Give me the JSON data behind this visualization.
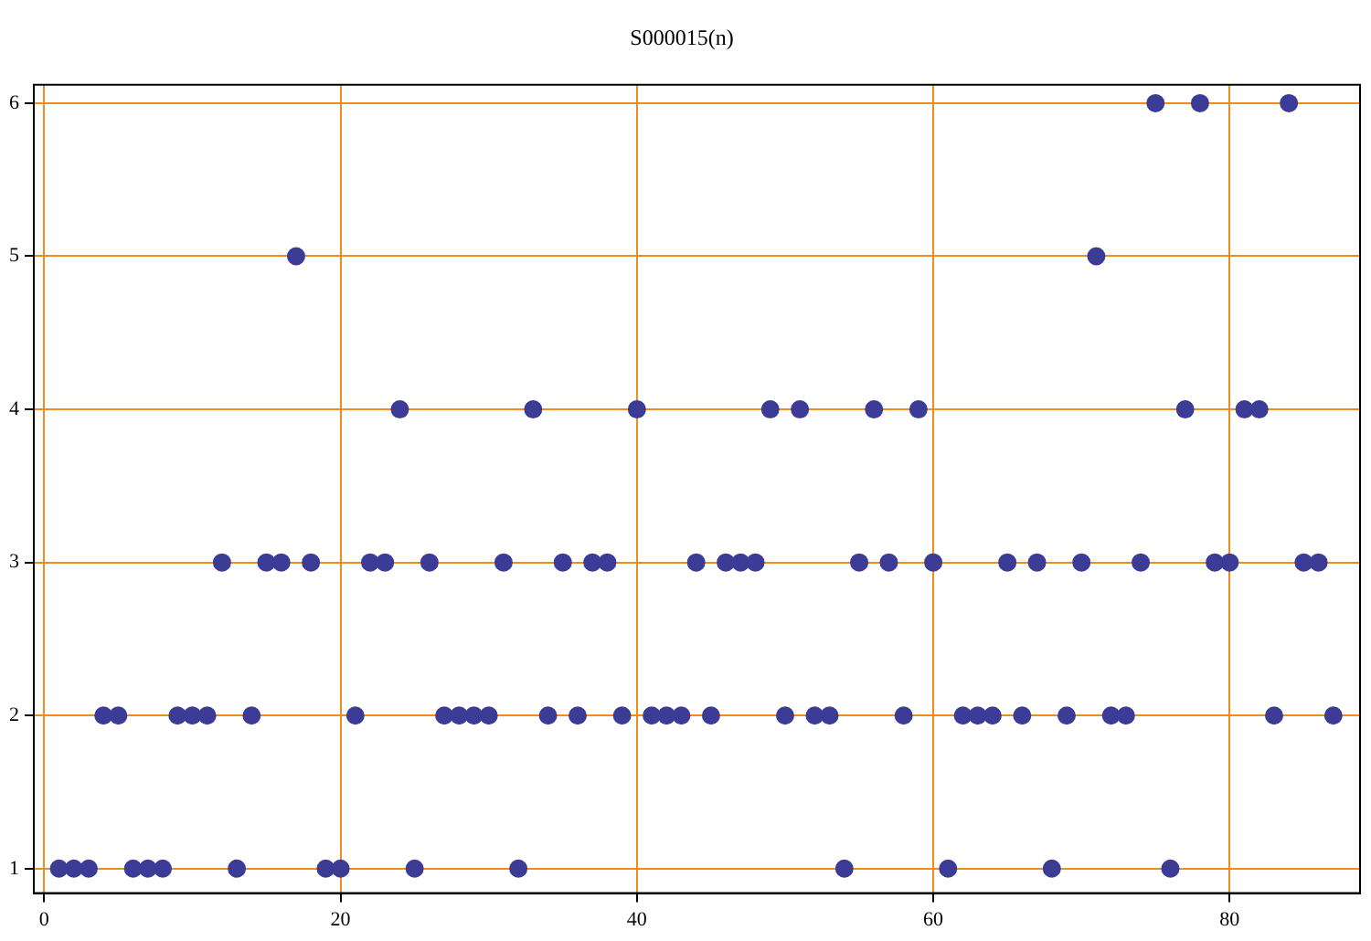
{
  "chart_data": {
    "type": "scatter",
    "title": "S000015(n)",
    "x": [
      1,
      2,
      3,
      4,
      5,
      6,
      7,
      8,
      9,
      10,
      11,
      12,
      13,
      14,
      15,
      16,
      17,
      18,
      19,
      20,
      21,
      22,
      23,
      24,
      25,
      26,
      27,
      28,
      29,
      30,
      31,
      32,
      33,
      34,
      35,
      36,
      37,
      38,
      39,
      40,
      41,
      42,
      43,
      44,
      45,
      46,
      47,
      48,
      49,
      50,
      51,
      52,
      53,
      54,
      55,
      56,
      57,
      58,
      59,
      60,
      61,
      62,
      63,
      64,
      65,
      66,
      67,
      68,
      69,
      70,
      71,
      72,
      73,
      74,
      75,
      76,
      77,
      78,
      79,
      80,
      81,
      82,
      83,
      84,
      85,
      86,
      87
    ],
    "series": [
      {
        "color": "#3c3c96",
        "values": [
          1,
          1,
          1,
          2,
          2,
          1,
          1,
          1,
          2,
          2,
          2,
          3,
          1,
          2,
          3,
          3,
          5,
          3,
          1,
          1,
          2,
          3,
          3,
          4,
          1,
          3,
          2,
          2,
          2,
          2,
          3,
          1,
          4,
          2,
          3,
          2,
          3,
          3,
          2,
          4,
          2,
          2,
          2,
          3,
          2,
          3,
          3,
          3,
          4,
          2,
          4,
          2,
          2,
          1,
          3,
          4,
          3,
          2,
          4,
          3,
          1,
          2,
          2,
          2,
          3,
          2,
          3,
          1,
          2,
          3,
          5,
          2,
          2,
          3,
          6,
          1,
          4,
          6,
          3,
          3,
          4,
          4,
          2,
          6,
          3,
          3,
          2
        ]
      }
    ],
    "xlim": [
      -0.7,
      88.8
    ],
    "ylim": [
      0.84,
      6.12
    ],
    "xticks": [
      0,
      20,
      40,
      60,
      80
    ],
    "yticks": [
      1,
      2,
      3,
      4,
      5,
      6
    ],
    "grid": true,
    "legend": false,
    "marker": "circle"
  }
}
